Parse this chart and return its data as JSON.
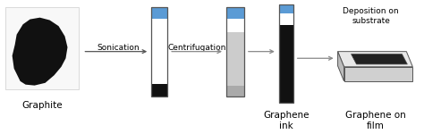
{
  "bg_color": "#ffffff",
  "labels": {
    "graphite": "Graphite",
    "graphene_ink": "Graphene\nink",
    "graphene_film": "Graphene on\nfilm",
    "deposition": "Deposition on\nsubstrate",
    "sonication": "Sonication",
    "centrifugation": "Centrifugation"
  },
  "colors": {
    "blue": "#5b9bd5",
    "black": "#111111",
    "white": "#ffffff",
    "light_gray": "#cccccc",
    "mid_gray": "#aaaaaa",
    "border": "#555555",
    "arrow": "#777777",
    "photo_bg": "#f0f0f0",
    "substrate_top": "#e8e8e8",
    "substrate_side": "#bbbbbb",
    "substrate_front": "#d0d0d0",
    "film": "#222222"
  },
  "font_size": 6.5,
  "font_size_label": 7.5
}
